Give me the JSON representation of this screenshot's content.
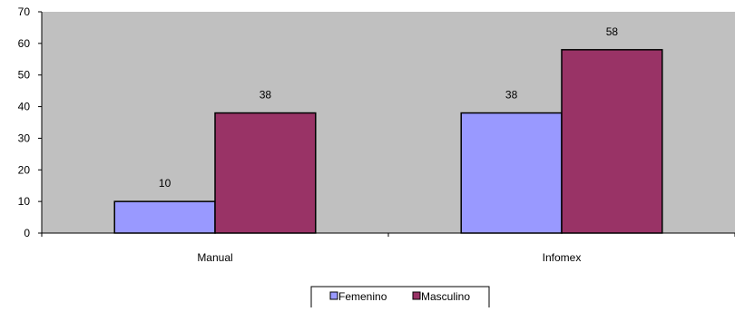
{
  "chart_data": {
    "type": "bar",
    "categories": [
      "Manual",
      "Infomex"
    ],
    "series": [
      {
        "name": "Femenino",
        "values": [
          10,
          38
        ],
        "color": "#9999FF"
      },
      {
        "name": "Masculino",
        "values": [
          38,
          58
        ],
        "color": "#993366"
      }
    ],
    "ylim": [
      0,
      70
    ],
    "yticks": [
      0,
      10,
      20,
      30,
      40,
      50,
      60,
      70
    ],
    "plot_background": "#C0C0C0",
    "grid": false,
    "legend_position": "bottom-center",
    "data_labels": true
  }
}
